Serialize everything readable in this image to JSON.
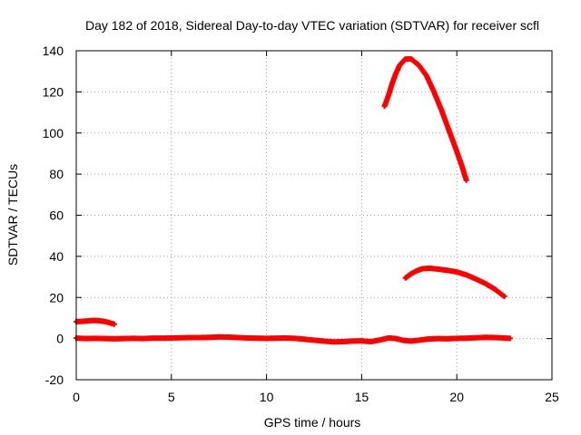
{
  "chart_data": {
    "type": "scatter",
    "title": "Day 182 of 2018, Sidereal Day-to-day VTEC variation (SDTVAR) for receiver scfl",
    "xlabel": "GPS time / hours",
    "ylabel": "SDTVAR / TECUs",
    "xlim": [
      0,
      25
    ],
    "ylim": [
      -20,
      140
    ],
    "xticks": [
      0,
      5,
      10,
      15,
      20,
      25
    ],
    "yticks": [
      -20,
      0,
      20,
      40,
      60,
      80,
      100,
      120,
      140
    ],
    "grid": true,
    "legend": "none",
    "marker_color": "#ff0000",
    "series": [
      {
        "points": [
          [
            0.0,
            0.2
          ],
          [
            0.5,
            0.0
          ],
          [
            1.0,
            0.1
          ],
          [
            1.5,
            0.0
          ],
          [
            2.0,
            -0.1
          ],
          [
            2.5,
            0.0
          ],
          [
            3.0,
            0.1
          ],
          [
            3.5,
            0.0
          ],
          [
            4.0,
            0.2
          ],
          [
            4.5,
            0.2
          ],
          [
            5.0,
            0.3
          ],
          [
            5.5,
            0.4
          ],
          [
            6.0,
            0.5
          ],
          [
            6.5,
            0.5
          ],
          [
            7.0,
            0.6
          ],
          [
            7.5,
            0.8
          ],
          [
            8.0,
            0.7
          ],
          [
            8.5,
            0.5
          ],
          [
            9.0,
            0.3
          ],
          [
            9.5,
            0.2
          ],
          [
            10.0,
            0.1
          ],
          [
            10.5,
            0.2
          ],
          [
            11.0,
            0.3
          ],
          [
            11.5,
            0.1
          ],
          [
            12.0,
            -0.3
          ],
          [
            12.5,
            -0.8
          ],
          [
            13.0,
            -1.2
          ],
          [
            13.5,
            -1.6
          ],
          [
            14.0,
            -1.5
          ],
          [
            14.5,
            -1.2
          ],
          [
            15.0,
            -1.1
          ],
          [
            15.5,
            -1.5
          ],
          [
            16.0,
            -0.6
          ],
          [
            16.4,
            0.3
          ],
          [
            16.8,
            0.0
          ],
          [
            17.2,
            -0.9
          ],
          [
            17.6,
            -1.2
          ],
          [
            18.0,
            -0.8
          ],
          [
            18.5,
            -0.2
          ],
          [
            19.0,
            0.0
          ],
          [
            19.5,
            -0.1
          ],
          [
            20.0,
            0.1
          ],
          [
            20.5,
            0.2
          ],
          [
            21.0,
            0.4
          ],
          [
            21.5,
            0.6
          ],
          [
            22.0,
            0.5
          ],
          [
            22.5,
            0.3
          ],
          [
            22.8,
            0.1
          ]
        ]
      },
      {
        "points": [
          [
            0.0,
            8.2
          ],
          [
            0.3,
            8.4
          ],
          [
            0.6,
            8.6
          ],
          [
            0.9,
            8.8
          ],
          [
            1.2,
            8.7
          ],
          [
            1.5,
            8.3
          ],
          [
            1.8,
            7.6
          ],
          [
            2.0,
            7.0
          ]
        ]
      },
      {
        "points": [
          [
            16.2,
            113
          ],
          [
            16.4,
            118
          ],
          [
            16.6,
            124
          ],
          [
            16.8,
            129
          ],
          [
            17.0,
            133
          ],
          [
            17.3,
            136
          ],
          [
            17.6,
            136
          ],
          [
            18.0,
            133
          ],
          [
            18.4,
            128
          ],
          [
            18.8,
            120
          ],
          [
            19.2,
            111
          ],
          [
            19.6,
            101
          ],
          [
            20.0,
            91
          ],
          [
            20.3,
            83
          ],
          [
            20.5,
            77
          ]
        ]
      },
      {
        "points": [
          [
            17.3,
            29.5
          ],
          [
            17.6,
            31.5
          ],
          [
            17.9,
            33.0
          ],
          [
            18.2,
            34.0
          ],
          [
            18.6,
            34.2
          ],
          [
            19.0,
            33.8
          ],
          [
            19.5,
            33.2
          ],
          [
            20.0,
            32.4
          ],
          [
            20.5,
            31.0
          ],
          [
            21.0,
            29.0
          ],
          [
            21.5,
            26.8
          ],
          [
            22.0,
            24.0
          ],
          [
            22.5,
            20.5
          ]
        ]
      }
    ]
  }
}
